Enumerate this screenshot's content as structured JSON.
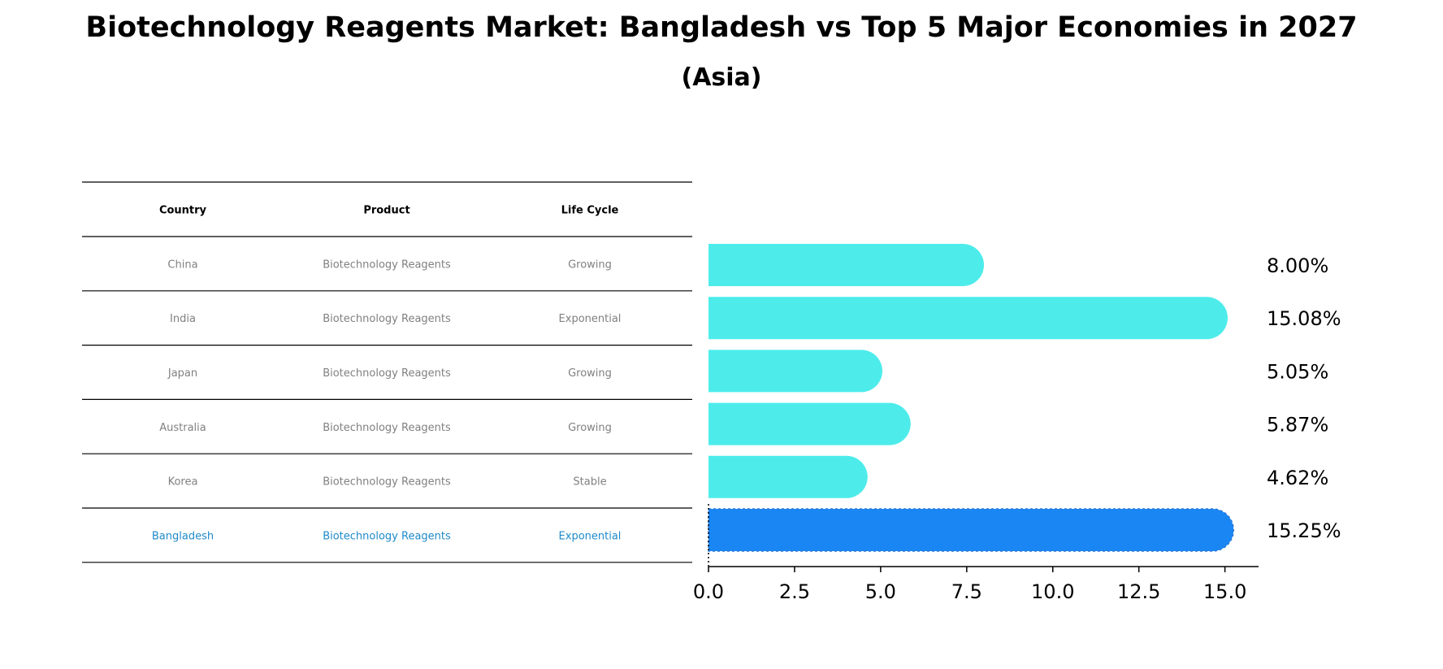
{
  "title": "Biotechnology Reagents Market: Bangladesh vs Top 5 Major Economies in 2027",
  "subtitle": "(Asia)",
  "colors": {
    "bar": "#4DECEB",
    "highlight_bar": "#1A86F4",
    "highlight_text": "#1F8AC9",
    "table_text": "#808080",
    "header_text": "#000000",
    "rule": "#000000"
  },
  "table": {
    "headers": [
      "Country",
      "Product",
      "Life Cycle"
    ],
    "rows": [
      [
        "China",
        "Biotechnology Reagents",
        "Growing"
      ],
      [
        "India",
        "Biotechnology Reagents",
        "Exponential"
      ],
      [
        "Japan",
        "Biotechnology Reagents",
        "Growing"
      ],
      [
        "Australia",
        "Biotechnology Reagents",
        "Growing"
      ],
      [
        "Korea",
        "Biotechnology Reagents",
        "Stable"
      ],
      [
        "Bangladesh",
        "Biotechnology Reagents",
        "Exponential"
      ]
    ],
    "highlight_row": 5
  },
  "chart_data": {
    "type": "bar",
    "orientation": "horizontal",
    "categories": [
      "China",
      "India",
      "Japan",
      "Australia",
      "Korea",
      "Bangladesh"
    ],
    "values": [
      8.0,
      15.08,
      5.05,
      5.87,
      4.62,
      15.25
    ],
    "value_labels": [
      "8.00%",
      "15.08%",
      "5.05%",
      "5.87%",
      "4.62%",
      "15.25%"
    ],
    "highlight": "Bangladesh",
    "xlim": [
      0,
      16
    ],
    "xticks": [
      0.0,
      2.5,
      5.0,
      7.5,
      10.0,
      12.5,
      15.0
    ],
    "xtick_labels": [
      "0.0",
      "2.5",
      "5.0",
      "7.5",
      "10.0",
      "12.5",
      "15.0"
    ],
    "xlabel": "",
    "ylabel": "",
    "grid": false,
    "title": "Biotechnology Reagents Market: Bangladesh vs Top 5 Major Economies in 2027",
    "subtitle": "(Asia)"
  }
}
